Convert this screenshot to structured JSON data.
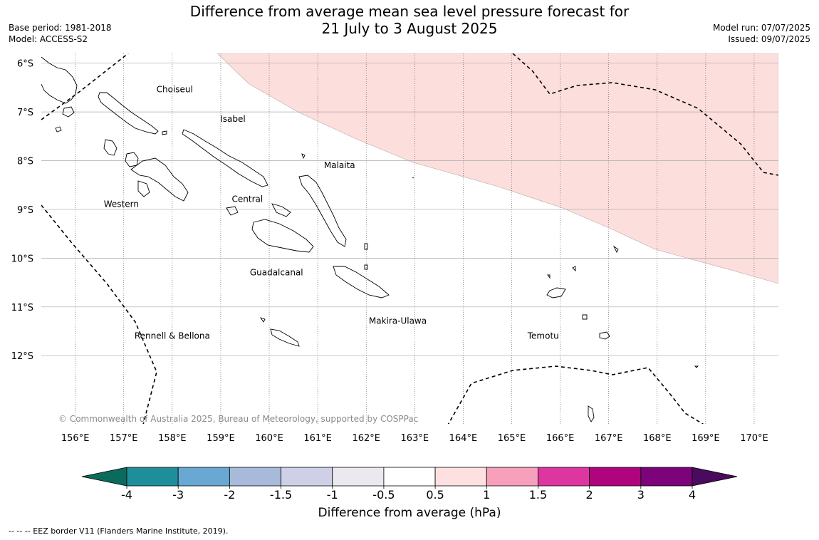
{
  "title": "Difference from average mean sea level pressure forecast for\n21 July to 3 August 2025",
  "meta_left": [
    "Base period: 1981-2018",
    "Model: ACCESS-S2"
  ],
  "meta_right": [
    "Model run: 07/07/2025",
    "Issued: 09/07/2025"
  ],
  "copyright": "© Commonwealth of Australia 2025, Bureau of Meteorology, supported by COSPPac",
  "map": {
    "lon_range": [
      155.3,
      170.5
    ],
    "lat_range": [
      -13.4,
      -5.8
    ],
    "lon_ticks": [
      "156°E",
      "157°E",
      "158°E",
      "159°E",
      "160°E",
      "161°E",
      "162°E",
      "163°E",
      "164°E",
      "165°E",
      "166°E",
      "167°E",
      "168°E",
      "169°E",
      "170°E"
    ],
    "lat_ticks": [
      "6°S",
      "7°S",
      "8°S",
      "9°S",
      "10°S",
      "11°S",
      "12°S"
    ],
    "positive_anomaly_color": "#fcdedd",
    "anomaly_region": "0.5 to 1 hPa over the north-east",
    "places": [
      {
        "name": "Choiseul",
        "lon": 158.05,
        "lat": -6.6
      },
      {
        "name": "Isabel",
        "lon": 159.25,
        "lat": -7.2
      },
      {
        "name": "Malaita",
        "lon": 161.45,
        "lat": -8.15
      },
      {
        "name": "Western",
        "lon": 156.95,
        "lat": -8.95
      },
      {
        "name": "Central",
        "lon": 159.55,
        "lat": -8.85
      },
      {
        "name": "Guadalcanal",
        "lon": 160.15,
        "lat": -10.35
      },
      {
        "name": "Makira-Ulawa",
        "lon": 162.65,
        "lat": -11.35
      },
      {
        "name": "Rennell & Bellona",
        "lon": 158.0,
        "lat": -11.65
      },
      {
        "name": "Temotu",
        "lon": 165.65,
        "lat": -11.65
      }
    ]
  },
  "colorbar": {
    "title": "Difference from average (hPa)",
    "tick_labels": [
      "-4",
      "-3",
      "-2",
      "-1.5",
      "-1",
      "-0.5",
      "0.5",
      "1",
      "1.5",
      "2",
      "3",
      "4"
    ],
    "colors": [
      "#1e8f9a",
      "#68a8d2",
      "#a7bad9",
      "#cfd0e8",
      "#ebe8ef",
      "#ffffff",
      "#fde0df",
      "#f7a0bb",
      "#de36a0",
      "#b0047e",
      "#7c0379"
    ],
    "extend_low_color": "#0a6b5c",
    "extend_high_color": "#4a0b5e"
  },
  "footnote": "--  --  -- EEZ border V11 (Flanders Marine Institute, 2019)."
}
